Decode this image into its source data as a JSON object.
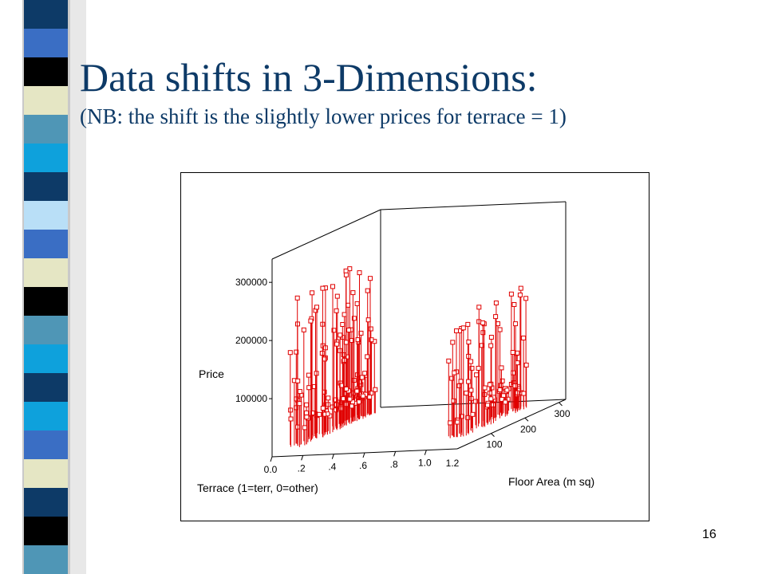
{
  "slide": {
    "title": "Data shifts in 3-Dimensions:",
    "subtitle": "(NB: the shift is the slightly lower prices for terrace = 1)",
    "page_number": "16",
    "title_color": "#0d3a67"
  },
  "decor": {
    "strip_colors": [
      "#0d3a67",
      "#3a6ec4",
      "#000000",
      "#e5e6c4",
      "#4f96b6",
      "#0ea1dc",
      "#0d3a67",
      "#b9dff7",
      "#3a6ec4",
      "#e5e6c4",
      "#000000",
      "#4f96b6",
      "#0ea1dc",
      "#0d3a67",
      "#0ea1dc",
      "#3a6ec4",
      "#e5e6c4",
      "#0d3a67",
      "#000000",
      "#4f96b6"
    ]
  },
  "chart_data": {
    "type": "scatter",
    "projection": "3d",
    "style": "needle",
    "marker_color": "#e00000",
    "xlabel": "Terrace (1=terr, 0=other)",
    "ylabel": "Floor Area (m sq)",
    "zlabel": "Price",
    "x_ticks": [
      "0.0",
      ".2",
      ".4",
      ".6",
      ".8",
      "1.0"
    ],
    "x_range_end_label": "1.2",
    "y_ticks": [
      "100",
      "200",
      "300"
    ],
    "z_ticks": [
      "100000",
      "200000",
      "300000"
    ],
    "xlim": [
      0,
      1.2
    ],
    "ylim": [
      0,
      320
    ],
    "zlim": [
      0,
      340000
    ],
    "clusters": [
      {
        "terrace": 0,
        "floor_area_range": [
          30,
          170
        ],
        "price_range": [
          30000,
          260000
        ]
      },
      {
        "terrace": 1,
        "floor_area_range": [
          30,
          160
        ],
        "price_range": [
          25000,
          210000
        ]
      }
    ]
  }
}
